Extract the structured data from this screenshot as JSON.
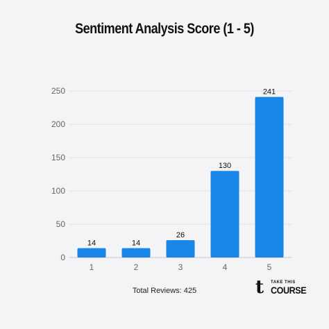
{
  "chart_data": {
    "type": "bar",
    "title": "Sentiment Analysis Score (1 - 5)",
    "categories": [
      "1",
      "2",
      "3",
      "4",
      "5"
    ],
    "values": [
      14,
      14,
      26,
      130,
      241
    ],
    "ylim": [
      0,
      250
    ],
    "y_ticks": [
      0,
      50,
      100,
      150,
      200,
      250
    ],
    "grid": true,
    "bar_color": "#1a86e8"
  },
  "footer": {
    "note": "Total Reviews: 425"
  },
  "brand": {
    "mark": "t",
    "small": "TAKE THIS",
    "large": "COURSE"
  }
}
